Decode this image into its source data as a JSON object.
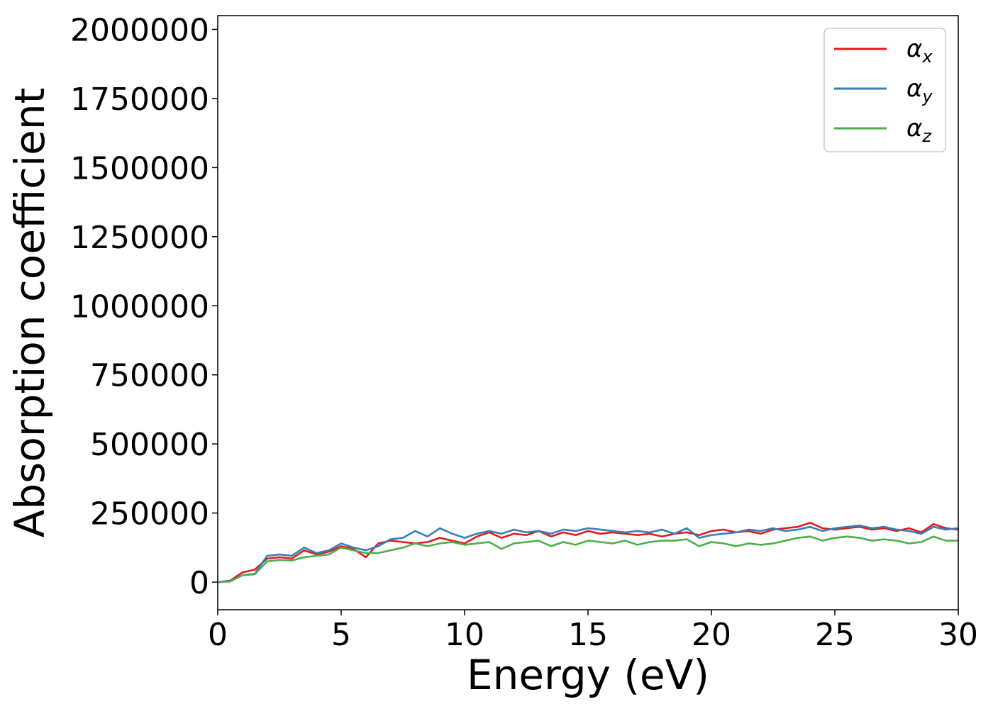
{
  "chart_data": {
    "type": "line",
    "title": "",
    "xlabel": "Energy (eV)",
    "ylabel": "Absorption coefficient",
    "xlim": [
      0,
      30
    ],
    "ylim": [
      -100000,
      2050000
    ],
    "xticks": [
      0,
      5,
      10,
      15,
      20,
      25,
      30
    ],
    "xtick_labels": [
      "0",
      "5",
      "10",
      "15",
      "20",
      "25",
      "30"
    ],
    "yticks": [
      0,
      250000,
      500000,
      750000,
      1000000,
      1250000,
      1500000,
      1750000,
      2000000
    ],
    "ytick_labels": [
      "0",
      "250000",
      "500000",
      "750000",
      "1000000",
      "1250000",
      "1500000",
      "1750000",
      "2000000"
    ],
    "grid": false,
    "legend_position": "top-right",
    "x": [
      0,
      0.5,
      1,
      1.5,
      2,
      2.5,
      3,
      3.5,
      4,
      4.5,
      5,
      5.5,
      6,
      6.5,
      7,
      7.5,
      8,
      8.5,
      9,
      9.5,
      10,
      10.5,
      11,
      11.5,
      12,
      12.5,
      13,
      13.5,
      14,
      14.5,
      15,
      15.5,
      16,
      16.5,
      17,
      17.5,
      18,
      18.5,
      19,
      19.5,
      20,
      20.5,
      21,
      21.5,
      22,
      22.5,
      23,
      23.5,
      24,
      24.5,
      25,
      25.5,
      26,
      26.5,
      27,
      27.5,
      28,
      28.5,
      29,
      29.5,
      30
    ],
    "series": [
      {
        "name": "α",
        "name_sub": "x",
        "color": "#e41a1c",
        "values": [
          0,
          5000,
          35000,
          45000,
          85000,
          90000,
          85000,
          115000,
          100000,
          110000,
          130000,
          120000,
          90000,
          140000,
          150000,
          145000,
          140000,
          145000,
          160000,
          150000,
          140000,
          165000,
          180000,
          160000,
          175000,
          170000,
          185000,
          165000,
          180000,
          170000,
          185000,
          175000,
          180000,
          175000,
          170000,
          175000,
          165000,
          175000,
          180000,
          170000,
          185000,
          190000,
          180000,
          185000,
          175000,
          190000,
          195000,
          200000,
          215000,
          195000,
          190000,
          195000,
          200000,
          190000,
          195000,
          185000,
          195000,
          180000,
          210000,
          195000,
          190000
        ]
      },
      {
        "name": "α",
        "name_sub": "y",
        "color": "#377eb8",
        "values": [
          0,
          3000,
          25000,
          30000,
          95000,
          100000,
          95000,
          125000,
          105000,
          115000,
          140000,
          125000,
          115000,
          130000,
          155000,
          160000,
          185000,
          165000,
          195000,
          175000,
          160000,
          175000,
          185000,
          175000,
          190000,
          180000,
          185000,
          175000,
          190000,
          185000,
          195000,
          190000,
          185000,
          180000,
          185000,
          180000,
          190000,
          175000,
          195000,
          160000,
          170000,
          175000,
          180000,
          190000,
          185000,
          195000,
          185000,
          190000,
          200000,
          185000,
          195000,
          200000,
          205000,
          195000,
          200000,
          190000,
          185000,
          175000,
          200000,
          190000,
          195000
        ]
      },
      {
        "name": "α",
        "name_sub": "z",
        "color": "#4daf4a",
        "values": [
          0,
          2000,
          25000,
          28000,
          75000,
          80000,
          78000,
          90000,
          95000,
          100000,
          125000,
          115000,
          105000,
          105000,
          115000,
          125000,
          140000,
          130000,
          140000,
          145000,
          135000,
          140000,
          145000,
          120000,
          140000,
          145000,
          150000,
          130000,
          145000,
          135000,
          150000,
          145000,
          140000,
          150000,
          135000,
          145000,
          150000,
          150000,
          155000,
          130000,
          145000,
          140000,
          130000,
          140000,
          135000,
          140000,
          150000,
          160000,
          165000,
          150000,
          160000,
          165000,
          160000,
          150000,
          155000,
          150000,
          140000,
          145000,
          165000,
          150000,
          150000
        ]
      }
    ]
  }
}
